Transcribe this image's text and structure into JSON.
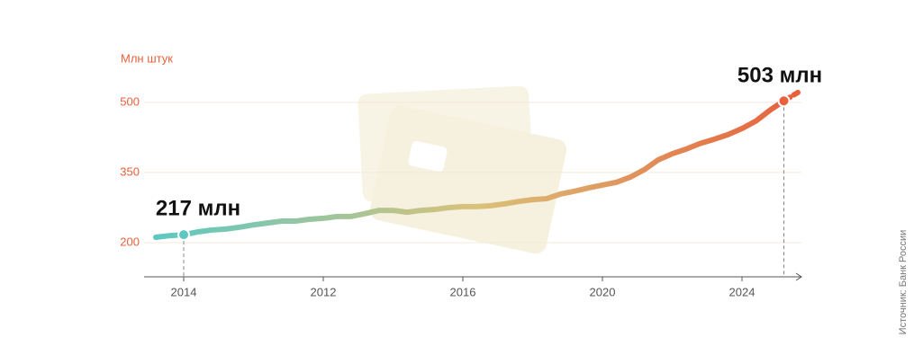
{
  "chart_data": {
    "type": "line",
    "unit_label": "Млн штук",
    "source": "Источник: Банк России",
    "categories": [
      null,
      null,
      "2014",
      null,
      null,
      null,
      null,
      null,
      null,
      null,
      null,
      null,
      "2012",
      null,
      null,
      null,
      null,
      null,
      null,
      null,
      null,
      null,
      "2016",
      null,
      null,
      null,
      null,
      null,
      null,
      null,
      null,
      null,
      "2020",
      null,
      null,
      null,
      null,
      null,
      null,
      null,
      null,
      null,
      "2024",
      null,
      null,
      null,
      null
    ],
    "series": [
      {
        "values": [
          211.5,
          215,
          217,
          223,
          227,
          229,
          233,
          238,
          242,
          246,
          246,
          250,
          252,
          256,
          256,
          262,
          269,
          269,
          265,
          269,
          271,
          275,
          277,
          277,
          279,
          283,
          288,
          292,
          294,
          304,
          310,
          317,
          323,
          329,
          340,
          356,
          377,
          390,
          400,
          412,
          421,
          431,
          444,
          460,
          483,
          503,
          521
        ]
      }
    ],
    "annotations": [
      "217 млн",
      "503 млн"
    ],
    "ylim": [
      127,
      540
    ],
    "yticks": [
      200,
      350,
      500
    ],
    "grid": true,
    "colors": [
      "#5cc8c2",
      "#d9c27a",
      "#e8603c"
    ]
  }
}
